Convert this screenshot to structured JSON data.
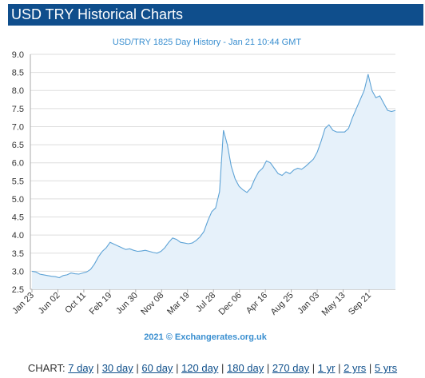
{
  "header": {
    "title": "USD TRY Historical Charts"
  },
  "chart_data": {
    "type": "area",
    "title": "USD/TRY 1825 Day History - Jan 21 10:44 GMT",
    "credit": "2021 © Exchangerates.org.uk",
    "ylim": [
      2.5,
      9.0
    ],
    "yticks": [
      "9.0",
      "8.5",
      "8.0",
      "7.5",
      "7.0",
      "6.5",
      "6.0",
      "5.5",
      "5.0",
      "4.5",
      "4.0",
      "3.5",
      "3.0",
      "2.5"
    ],
    "xticks": [
      "Jan 23",
      "Jun 02",
      "Oct 11",
      "Feb 19",
      "Jun 30",
      "Nov 08",
      "Mar 19",
      "Jul 28",
      "Dec 06",
      "Apr 16",
      "Aug 25",
      "Jan 03",
      "May 13",
      "Sep 21"
    ],
    "grid": true,
    "line_color": "#5ea3d6",
    "fill_color": "#e6f1fa",
    "series": [
      {
        "values": [
          3.0,
          2.98,
          2.92,
          2.9,
          2.88,
          2.86,
          2.85,
          2.82,
          2.88,
          2.9,
          2.95,
          2.93,
          2.92,
          2.95,
          2.98,
          3.05,
          3.2,
          3.4,
          3.55,
          3.65,
          3.8,
          3.75,
          3.7,
          3.65,
          3.6,
          3.62,
          3.58,
          3.55,
          3.56,
          3.58,
          3.55,
          3.52,
          3.5,
          3.55,
          3.65,
          3.8,
          3.92,
          3.88,
          3.8,
          3.78,
          3.76,
          3.78,
          3.85,
          3.95,
          4.1,
          4.4,
          4.65,
          4.75,
          5.2,
          6.9,
          6.5,
          5.9,
          5.55,
          5.35,
          5.25,
          5.18,
          5.3,
          5.55,
          5.75,
          5.85,
          6.05,
          6.0,
          5.85,
          5.7,
          5.65,
          5.75,
          5.7,
          5.8,
          5.85,
          5.82,
          5.9,
          6.0,
          6.1,
          6.3,
          6.6,
          6.95,
          7.05,
          6.9,
          6.85,
          6.85,
          6.85,
          6.95,
          7.25,
          7.5,
          7.75,
          8.0,
          8.45,
          8.0,
          7.8,
          7.85,
          7.65,
          7.45,
          7.42,
          7.45
        ]
      }
    ]
  },
  "footer": {
    "label": "CHART:",
    "links": [
      "7 day",
      "30 day",
      "60 day",
      "120 day",
      "180 day",
      "270 day",
      "1 yr",
      "2 yrs",
      "5 yrs"
    ],
    "separator": "|"
  }
}
